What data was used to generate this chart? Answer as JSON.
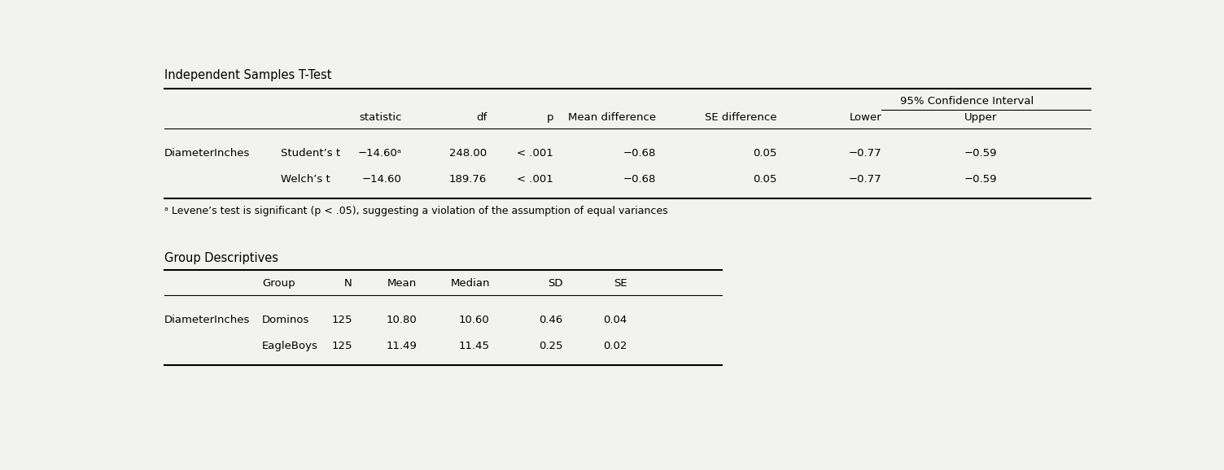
{
  "bg_color": "#f2f2f0",
  "title1": "Independent Samples T-Test",
  "title2": "Group Descriptives",
  "t_test": {
    "ci_header": "95% Confidence Interval",
    "col_headers": [
      "",
      "",
      "statistic",
      "df",
      "p",
      "Mean difference",
      "SE difference",
      "Lower",
      "Upper"
    ],
    "rows": [
      [
        "DiameterInches",
        "Student’s t",
        "−14.60ᵃ",
        "248.00",
        "< .001",
        "−0.68",
        "0.05",
        "−0.77",
        "−0.59"
      ],
      [
        "",
        "Welch’s t",
        "−14.60",
        "189.76",
        "< .001",
        "−0.68",
        "0.05",
        "−0.77",
        "−0.59"
      ]
    ],
    "footnote": "ᵃ Levene’s test is significant (p < .05), suggesting a violation of the assumption of equal variances"
  },
  "descriptives": {
    "col_headers": [
      "",
      "Group",
      "N",
      "Mean",
      "Median",
      "SD",
      "SE"
    ],
    "rows": [
      [
        "DiameterInches",
        "Dominos",
        "125",
        "10.80",
        "10.60",
        "0.46",
        "0.04"
      ],
      [
        "",
        "EagleBoys",
        "125",
        "11.49",
        "11.45",
        "0.25",
        "0.02"
      ]
    ]
  }
}
